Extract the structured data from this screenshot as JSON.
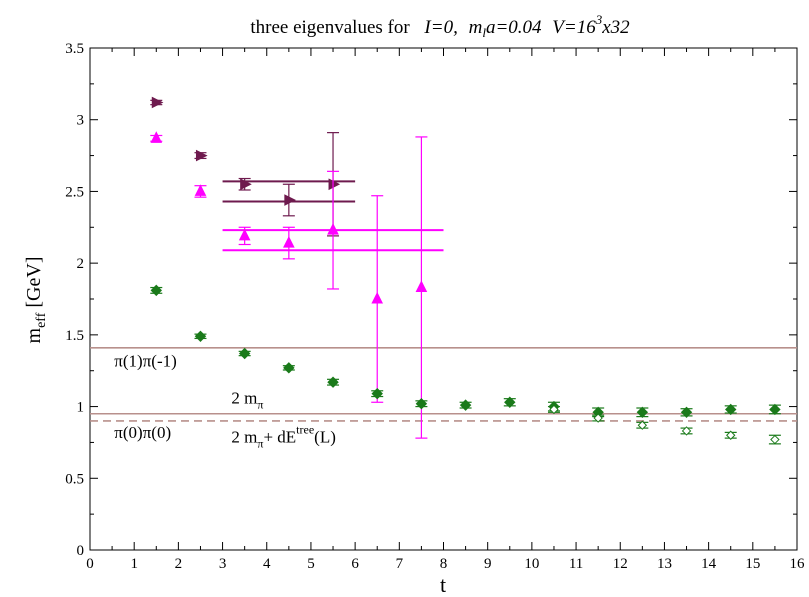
{
  "chart_data": {
    "type": "scatter",
    "title_parts": {
      "prefix": "three eigenvalues for",
      "i_part": "I=0,",
      "m": "m",
      "m_sub": "l",
      "m_rest": "a=0.04",
      "v": "V=16",
      "v_sup": "3",
      "v_rest": "x32"
    },
    "xlabel": "t",
    "ylabel": {
      "main": "m",
      "sub": "eff",
      "unit": " [GeV]"
    },
    "xlim": [
      0,
      16
    ],
    "ylim": [
      0,
      3.5
    ],
    "x_ticks": [
      "0",
      "1",
      "2",
      "3",
      "4",
      "5",
      "6",
      "7",
      "8",
      "9",
      "10",
      "11",
      "12",
      "13",
      "14",
      "15",
      "16"
    ],
    "y_ticks": [
      "0",
      "0.5",
      "1",
      "1.5",
      "2",
      "2.5",
      "3",
      "3.5"
    ],
    "colors": {
      "dark_magenta": "#6e1a4e",
      "magenta": "#ff00ff",
      "green": "#1a7a1a",
      "level": "#b8908c"
    },
    "series": [
      {
        "marker": "triangle-right",
        "color": "dark_magenta",
        "points": [
          {
            "x": 1.5,
            "y": 3.12,
            "err": 0.015
          },
          {
            "x": 2.5,
            "y": 2.75,
            "err": 0.02
          },
          {
            "x": 3.5,
            "y": 2.55,
            "err": 0.04
          },
          {
            "x": 4.5,
            "y": 2.44,
            "err": 0.11
          },
          {
            "x": 5.5,
            "y": 2.55,
            "err": 0.36
          }
        ]
      },
      {
        "marker": "triangle-up",
        "color": "magenta",
        "points": [
          {
            "x": 1.5,
            "y": 2.87,
            "err": 0.02
          },
          {
            "x": 2.5,
            "y": 2.5,
            "err": 0.04
          },
          {
            "x": 3.5,
            "y": 2.19,
            "err": 0.06
          },
          {
            "x": 4.5,
            "y": 2.14,
            "err": 0.11
          },
          {
            "x": 5.5,
            "y": 2.23,
            "err": 0.41
          },
          {
            "x": 6.5,
            "y": 1.75,
            "err": 0.72
          },
          {
            "x": 7.5,
            "y": 1.83,
            "err": 1.05
          }
        ]
      },
      {
        "marker": "diamond-filled",
        "color": "green",
        "points": [
          {
            "x": 1.5,
            "y": 1.81,
            "err": 0.02
          },
          {
            "x": 2.5,
            "y": 1.49,
            "err": 0.015
          },
          {
            "x": 3.5,
            "y": 1.37,
            "err": 0.015
          },
          {
            "x": 4.5,
            "y": 1.27,
            "err": 0.015
          },
          {
            "x": 5.5,
            "y": 1.17,
            "err": 0.02
          },
          {
            "x": 6.5,
            "y": 1.09,
            "err": 0.02
          },
          {
            "x": 7.5,
            "y": 1.02,
            "err": 0.02
          },
          {
            "x": 8.5,
            "y": 1.01,
            "err": 0.02
          },
          {
            "x": 9.5,
            "y": 1.03,
            "err": 0.025
          },
          {
            "x": 10.5,
            "y": 1.0,
            "err": 0.03
          },
          {
            "x": 11.5,
            "y": 0.96,
            "err": 0.03
          },
          {
            "x": 12.5,
            "y": 0.96,
            "err": 0.03
          },
          {
            "x": 13.5,
            "y": 0.96,
            "err": 0.025
          },
          {
            "x": 14.5,
            "y": 0.98,
            "err": 0.025
          },
          {
            "x": 15.5,
            "y": 0.98,
            "err": 0.03
          }
        ]
      },
      {
        "marker": "diamond-open",
        "color": "green",
        "points": [
          {
            "x": 10.5,
            "y": 0.98,
            "err": 0.02
          },
          {
            "x": 11.5,
            "y": 0.92,
            "err": 0.02
          },
          {
            "x": 12.5,
            "y": 0.87,
            "err": 0.02
          },
          {
            "x": 13.5,
            "y": 0.83,
            "err": 0.02
          },
          {
            "x": 14.5,
            "y": 0.8,
            "err": 0.02
          },
          {
            "x": 15.5,
            "y": 0.77,
            "err": 0.03
          }
        ]
      }
    ],
    "plateaus": [
      {
        "color": "dark_magenta",
        "x": [
          3,
          6
        ],
        "y": 2.57
      },
      {
        "color": "dark_magenta",
        "x": [
          3,
          6
        ],
        "y": 2.43
      },
      {
        "color": "magenta",
        "x": [
          3,
          8
        ],
        "y": 2.23
      },
      {
        "color": "magenta",
        "x": [
          3,
          8
        ],
        "y": 2.09
      }
    ],
    "hlines": [
      {
        "y": 1.41,
        "style": "solid"
      },
      {
        "y": 0.95,
        "style": "solid"
      },
      {
        "y": 0.9,
        "style": "dashed"
      }
    ],
    "annotations": [
      {
        "id": "pi1",
        "text": "π(1)π(-1)",
        "x": 0.55,
        "y": 1.28
      },
      {
        "id": "pi0",
        "text": "π(0)π(0)",
        "x": 0.55,
        "y": 0.78
      },
      {
        "id": "twompi",
        "main": "2 m",
        "sub": "π",
        "x": 3.2,
        "y": 1.02
      },
      {
        "id": "twompi_de",
        "main": "2 m",
        "sub": "π",
        "rest": "+ dE",
        "sup": "tree",
        "tail": "(L)",
        "x": 3.2,
        "y": 0.75
      }
    ]
  }
}
